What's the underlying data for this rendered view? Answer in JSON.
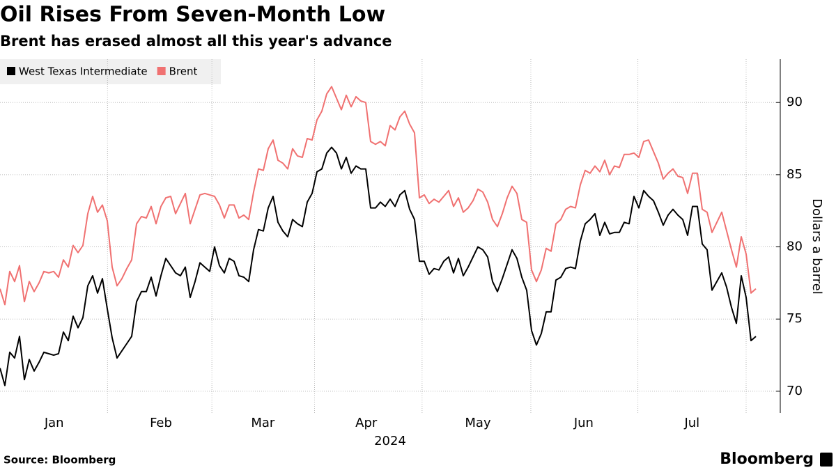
{
  "chart_data": {
    "type": "line",
    "title": "Oil Rises From Seven-Month Low",
    "subtitle": "Brent has erased almost all this year's advance",
    "ylabel": "Dollars a barrel",
    "xlabel": "2024",
    "source": "Source: Bloomberg",
    "logo": "Bloomberg",
    "ylim": [
      68.5,
      93
    ],
    "yticks": [
      70,
      75,
      80,
      85,
      90
    ],
    "xlim": [
      0,
      160
    ],
    "xticks": [
      {
        "value": 11.1,
        "label": "Jan"
      },
      {
        "value": 33,
        "label": "Feb"
      },
      {
        "value": 53.9,
        "label": "Mar"
      },
      {
        "value": 75.1,
        "label": "Apr"
      },
      {
        "value": 98,
        "label": "May"
      },
      {
        "value": 119.7,
        "label": "Jun"
      },
      {
        "value": 141.9,
        "label": "Jul"
      }
    ],
    "grid": true,
    "legend": "top-left",
    "series": [
      {
        "name": "West Texas Intermediate",
        "color": "#000000",
        "values": [
          71.6,
          70.4,
          72.7,
          72.3,
          73.8,
          70.8,
          72.2,
          71.4,
          72.0,
          72.7,
          72.6,
          72.5,
          72.6,
          74.1,
          73.5,
          75.2,
          74.4,
          75.1,
          77.3,
          78.0,
          76.8,
          77.8,
          75.7,
          73.7,
          72.3,
          72.8,
          73.3,
          73.8,
          76.2,
          76.9,
          76.9,
          77.9,
          76.6,
          78.0,
          79.2,
          78.7,
          78.2,
          78.0,
          78.6,
          76.5,
          77.6,
          78.9,
          78.6,
          78.3,
          80.0,
          78.7,
          78.2,
          79.2,
          79.0,
          78.0,
          77.9,
          77.6,
          79.8,
          81.2,
          81.1,
          82.7,
          83.5,
          81.7,
          81.1,
          80.7,
          81.9,
          81.6,
          81.4,
          83.1,
          83.7,
          85.2,
          85.4,
          86.5,
          86.9,
          86.5,
          85.4,
          86.2,
          85.1,
          85.6,
          85.4,
          85.4,
          82.7,
          82.7,
          83.1,
          82.8,
          83.3,
          82.8,
          83.6,
          83.9,
          82.6,
          81.9,
          79.0,
          79.0,
          78.1,
          78.5,
          78.4,
          79.0,
          79.3,
          78.2,
          79.2,
          78.0,
          78.6,
          79.3,
          80.0,
          79.8,
          79.3,
          77.6,
          76.9,
          77.8,
          78.8,
          79.8,
          79.2,
          77.9,
          77.0,
          74.2,
          73.2,
          74.0,
          75.5,
          75.5,
          77.7,
          77.9,
          78.5,
          78.6,
          78.5,
          80.4,
          81.6,
          81.9,
          82.3,
          80.8,
          81.7,
          80.9,
          81.0,
          81.0,
          81.7,
          81.6,
          83.5,
          82.7,
          83.9,
          83.5,
          83.2,
          82.4,
          81.5,
          82.2,
          82.6,
          82.2,
          81.9,
          80.8,
          82.8,
          82.8,
          80.2,
          79.8,
          77.0,
          77.6,
          78.2,
          77.2,
          75.8,
          74.7,
          78.0,
          76.5,
          73.5,
          73.8
        ]
      },
      {
        "name": "Brent",
        "color": "#f07171",
        "values": [
          77.1,
          76.0,
          78.3,
          77.6,
          78.7,
          76.2,
          77.6,
          76.9,
          77.5,
          78.3,
          78.2,
          78.3,
          77.9,
          79.1,
          78.6,
          80.1,
          79.6,
          80.1,
          82.3,
          83.5,
          82.4,
          82.9,
          81.8,
          78.6,
          77.3,
          77.8,
          78.5,
          79.1,
          81.6,
          82.1,
          82.0,
          82.8,
          81.6,
          82.8,
          83.4,
          83.5,
          82.3,
          83.0,
          83.7,
          81.6,
          82.6,
          83.6,
          83.7,
          83.6,
          83.5,
          82.9,
          82.0,
          82.9,
          82.9,
          82.0,
          82.2,
          81.9,
          83.8,
          85.4,
          85.3,
          86.8,
          87.4,
          86.0,
          85.8,
          85.4,
          86.8,
          86.3,
          86.2,
          87.5,
          87.4,
          88.8,
          89.4,
          90.6,
          91.1,
          90.3,
          89.5,
          90.5,
          89.7,
          90.4,
          90.1,
          90.0,
          87.3,
          87.1,
          87.3,
          87.0,
          88.4,
          88.1,
          89.0,
          89.4,
          88.5,
          87.9,
          83.4,
          83.6,
          83.0,
          83.3,
          83.1,
          83.5,
          83.9,
          82.8,
          83.4,
          82.4,
          82.7,
          83.2,
          84.0,
          83.8,
          83.1,
          81.9,
          81.4,
          82.3,
          83.4,
          84.2,
          83.7,
          81.9,
          81.7,
          78.4,
          77.6,
          78.4,
          79.9,
          79.7,
          81.6,
          81.9,
          82.6,
          82.8,
          82.7,
          84.3,
          85.3,
          85.1,
          85.6,
          85.2,
          86.0,
          85.0,
          85.6,
          85.5,
          86.4,
          86.4,
          86.5,
          86.2,
          87.3,
          87.4,
          86.6,
          85.8,
          84.7,
          85.1,
          85.4,
          84.9,
          84.8,
          83.7,
          85.1,
          85.1,
          82.6,
          82.4,
          81.0,
          81.7,
          82.4,
          81.1,
          79.8,
          78.6,
          80.7,
          79.5,
          76.8,
          77.1
        ]
      }
    ]
  }
}
